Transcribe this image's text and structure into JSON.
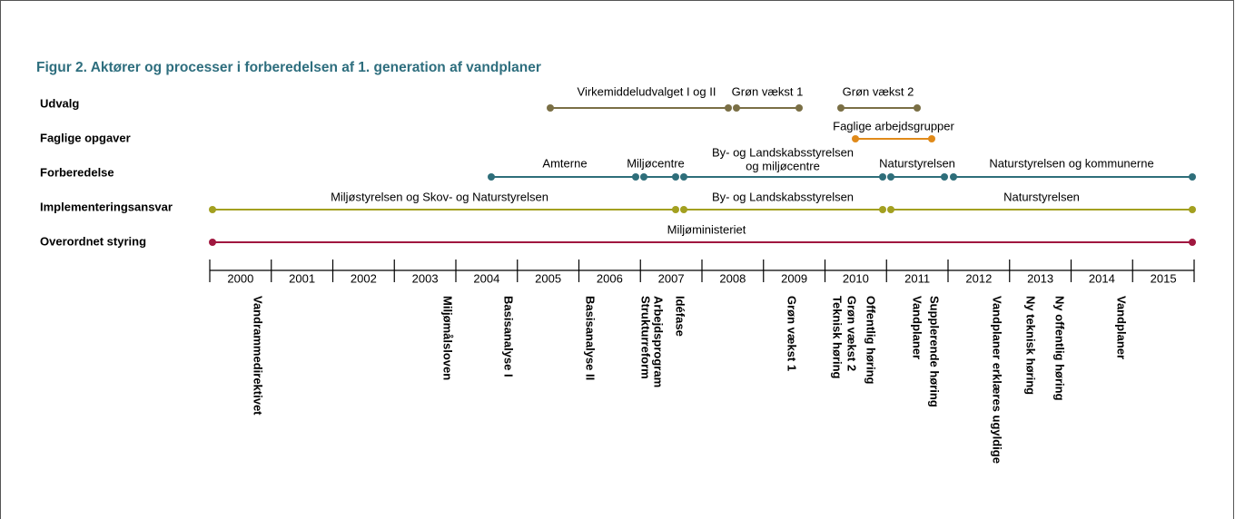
{
  "title": "Figur 2. Aktører og processer i forberedelsen af 1. generation af vandplaner",
  "rows": [
    {
      "label": "Udvalg",
      "segments": [
        "Virkemiddeludvalget I og II",
        "Grøn vækst 1",
        "Grøn vækst 2"
      ]
    },
    {
      "label": "Faglige opgaver",
      "segments": [
        "Faglige arbejdsgrupper"
      ]
    },
    {
      "label": "Forberedelse",
      "segments": [
        "Amterne",
        "Miljøcentre",
        "By- og Landskabsstyrelsen",
        "og miljøcentre",
        "Naturstyrelsen",
        "Naturstyrelsen og kommunerne"
      ]
    },
    {
      "label": "Implementeringsansvar",
      "segments": [
        "Miljøstyrelsen og Skov- og Naturstyrelsen",
        "By- og Landskabsstyrelsen",
        "Naturstyrelsen"
      ]
    },
    {
      "label": "Overordnet styring",
      "segments": [
        "Miljøministeriet"
      ]
    }
  ],
  "years": [
    2000,
    2001,
    2002,
    2003,
    2004,
    2005,
    2006,
    2007,
    2008,
    2009,
    2010,
    2011,
    2012,
    2013,
    2014,
    2015
  ],
  "events": [
    "Vandrammedirektivet",
    "Miljømålsloven",
    "Basisanalyse I",
    "Basisanalyse II",
    "Strukturreform",
    "Arbejdsprogram",
    "Idéfase",
    "Grøn vækst 1",
    "Teknisk høring",
    "Grøn vækst 2",
    "Offentlig høring",
    "Vandplaner",
    "Supplerende høring",
    "Vandplaner erklæres ugyldige",
    "Ny teknisk høring",
    "Ny offentlig høring",
    "Vandplaner"
  ]
}
